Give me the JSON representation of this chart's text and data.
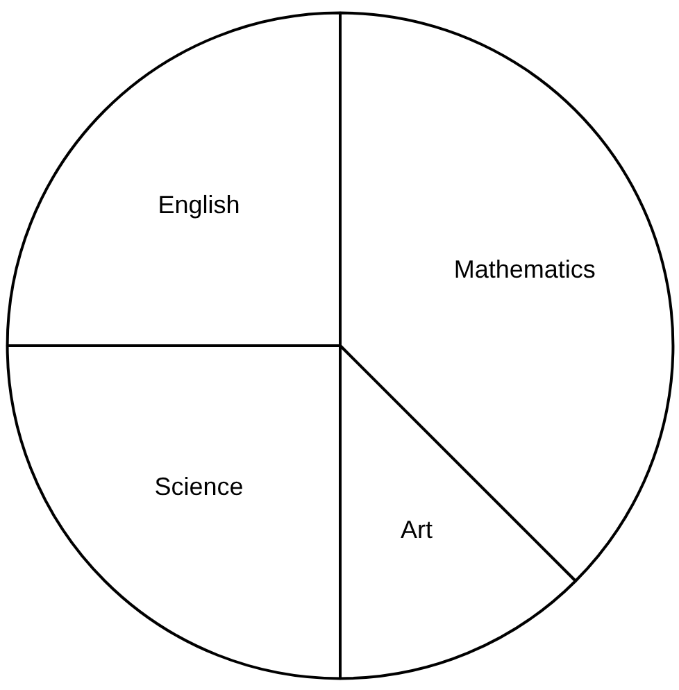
{
  "chart_data": {
    "type": "pie",
    "categories": [
      "Mathematics",
      "Art",
      "Science",
      "English"
    ],
    "values": [
      37.5,
      12.5,
      25,
      25
    ],
    "colors": [
      "#ffffff",
      "#ffffff",
      "#ffffff",
      "#ffffff"
    ]
  }
}
